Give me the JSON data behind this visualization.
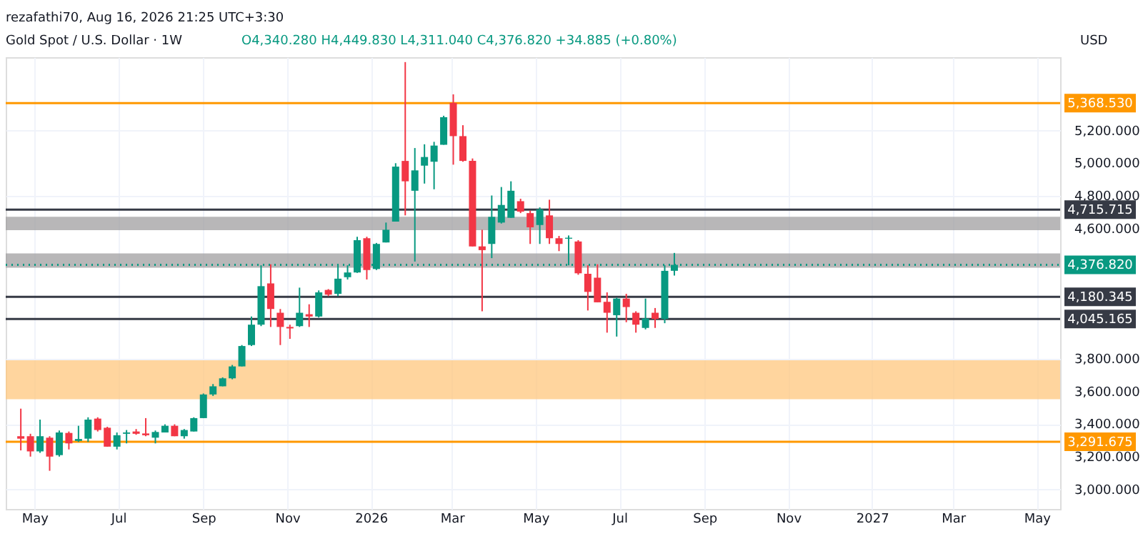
{
  "chart_data": {
    "type": "candlestick",
    "title": "Gold Spot / U.S. Dollar · 1W",
    "subtitle": "O4,340.280 H4,449.830 L4,311.040 C4,376.820 +34.885 (+0.80%)",
    "annotations": [
      "rezafathi70, Aug 16, 2026 21:25 UTC+3:30"
    ],
    "ylabel": "USD",
    "x": [
      "2025-04-21",
      "2025-04-28",
      "2025-05-05",
      "2025-05-12",
      "2025-05-19",
      "2025-05-26",
      "2025-06-02",
      "2025-06-09",
      "2025-06-16",
      "2025-06-23",
      "2025-06-30",
      "2025-07-07",
      "2025-07-14",
      "2025-07-21",
      "2025-07-28",
      "2025-08-04",
      "2025-08-11",
      "2025-08-18",
      "2025-08-25",
      "2025-09-01",
      "2025-09-08",
      "2025-09-15",
      "2025-09-22",
      "2025-09-29",
      "2025-10-06",
      "2025-10-13",
      "2025-10-20",
      "2025-10-27",
      "2025-11-03",
      "2025-11-10",
      "2025-11-17",
      "2025-11-24",
      "2025-12-01",
      "2025-12-08",
      "2025-12-15",
      "2025-12-22",
      "2025-12-29",
      "2026-01-05",
      "2026-01-12",
      "2026-01-19",
      "2026-01-26",
      "2026-02-02",
      "2026-02-09",
      "2026-02-16",
      "2026-02-23",
      "2026-03-02",
      "2026-03-09",
      "2026-03-16",
      "2026-03-23",
      "2026-03-30",
      "2026-04-06",
      "2026-04-13",
      "2026-04-20",
      "2026-04-27",
      "2026-05-04",
      "2026-05-11",
      "2026-05-18",
      "2026-05-25",
      "2026-06-01",
      "2026-06-08",
      "2026-06-15",
      "2026-06-22",
      "2026-06-29",
      "2026-07-06",
      "2026-07-13",
      "2026-07-20",
      "2026-07-27",
      "2026-08-03",
      "2026-08-10"
    ],
    "ohlc": [
      [
        3326,
        3495,
        3239,
        3311
      ],
      [
        3326,
        3341,
        3201,
        3233
      ],
      [
        3233,
        3428,
        3224,
        3326
      ],
      [
        3317,
        3326,
        3114,
        3201
      ],
      [
        3210,
        3361,
        3201,
        3349
      ],
      [
        3346,
        3355,
        3245,
        3282
      ],
      [
        3297,
        3390,
        3291,
        3309
      ],
      [
        3311,
        3442,
        3291,
        3428
      ],
      [
        3434,
        3442,
        3355,
        3364
      ],
      [
        3378,
        3384,
        3262,
        3262
      ],
      [
        3262,
        3349,
        3245,
        3332
      ],
      [
        3341,
        3364,
        3282,
        3349
      ],
      [
        3355,
        3370,
        3335,
        3341
      ],
      [
        3343,
        3437,
        3326,
        3332
      ],
      [
        3317,
        3361,
        3282,
        3352
      ],
      [
        3349,
        3399,
        3349,
        3390
      ],
      [
        3390,
        3399,
        3326,
        3326
      ],
      [
        3326,
        3370,
        3311,
        3364
      ],
      [
        3355,
        3442,
        3355,
        3437
      ],
      [
        3437,
        3588,
        3437,
        3582
      ],
      [
        3582,
        3646,
        3573,
        3632
      ],
      [
        3632,
        3687,
        3632,
        3681
      ],
      [
        3681,
        3763,
        3675,
        3754
      ],
      [
        3754,
        3885,
        3754,
        3879
      ],
      [
        3885,
        4060,
        3879,
        4010
      ],
      [
        4010,
        4374,
        4001,
        4246
      ],
      [
        4263,
        4380,
        3996,
        4106
      ],
      [
        4083,
        4106,
        3885,
        3996
      ],
      [
        3996,
        4010,
        3923,
        3987
      ],
      [
        4001,
        4237,
        3996,
        4083
      ],
      [
        4074,
        4135,
        3996,
        4060
      ],
      [
        4060,
        4220,
        4054,
        4208
      ],
      [
        4223,
        4228,
        4185,
        4194
      ],
      [
        4199,
        4374,
        4185,
        4292
      ],
      [
        4301,
        4374,
        4287,
        4330
      ],
      [
        4330,
        4549,
        4327,
        4528
      ],
      [
        4540,
        4549,
        4287,
        4345
      ],
      [
        4351,
        4511,
        4345,
        4505
      ],
      [
        4514,
        4636,
        4514,
        4592
      ],
      [
        4642,
        5000,
        4642,
        4979
      ],
      [
        5014,
        5620,
        4680,
        4889
      ],
      [
        4831,
        5093,
        4397,
        4956
      ],
      [
        4985,
        5116,
        4875,
        5038
      ],
      [
        5009,
        5131,
        4840,
        5108
      ],
      [
        5113,
        5291,
        5113,
        5282
      ],
      [
        5370,
        5422,
        4991,
        5166
      ],
      [
        5166,
        5233,
        5009,
        5014
      ],
      [
        5014,
        5029,
        4490,
        4490
      ],
      [
        4490,
        4592,
        4092,
        4467
      ],
      [
        4505,
        4802,
        4418,
        4671
      ],
      [
        4636,
        4854,
        4630,
        4744
      ],
      [
        4665,
        4889,
        4665,
        4831
      ],
      [
        4767,
        4782,
        4694,
        4703
      ],
      [
        4694,
        4709,
        4505,
        4607
      ],
      [
        4621,
        4729,
        4505,
        4717
      ],
      [
        4680,
        4776,
        4505,
        4540
      ],
      [
        4540,
        4554,
        4461,
        4505
      ],
      [
        4537,
        4557,
        4374,
        4543
      ],
      [
        4520,
        4528,
        4316,
        4325
      ],
      [
        4322,
        4374,
        4097,
        4211
      ],
      [
        4298,
        4380,
        4147,
        4147
      ],
      [
        4150,
        4208,
        3961,
        4083
      ],
      [
        4068,
        4176,
        3937,
        4170
      ],
      [
        4170,
        4199,
        4025,
        4118
      ],
      [
        4083,
        4092,
        3961,
        4010
      ],
      [
        3990,
        4170,
        3981,
        4048
      ],
      [
        4083,
        4112,
        3990,
        4045
      ],
      [
        4045,
        4374,
        4019,
        4340
      ],
      [
        4340.28,
        4449.83,
        4311.04,
        4376.82
      ]
    ],
    "colors": [
      "#f23645",
      "#f23645",
      "#089981",
      "#f23645",
      "#089981",
      "#f23645",
      "#089981",
      "#089981",
      "#f23645",
      "#f23645",
      "#089981",
      "#089981",
      "#f23645",
      "#f23645",
      "#089981",
      "#089981",
      "#f23645",
      "#089981",
      "#089981",
      "#089981",
      "#089981",
      "#089981",
      "#089981",
      "#089981",
      "#089981",
      "#089981",
      "#f23645",
      "#f23645",
      "#f23645",
      "#089981",
      "#f23645",
      "#089981",
      "#f23645",
      "#089981",
      "#089981",
      "#089981",
      "#f23645",
      "#089981",
      "#089981",
      "#089981",
      "#f23645",
      "#089981",
      "#089981",
      "#089981",
      "#089981",
      "#f23645",
      "#f23645",
      "#f23645",
      "#f23645",
      "#089981",
      "#089981",
      "#089981",
      "#f23645",
      "#f23645",
      "#089981",
      "#f23645",
      "#f23645",
      "#089981",
      "#f23645",
      "#f23645",
      "#f23645",
      "#f23645",
      "#089981",
      "#f23645",
      "#f23645",
      "#089981",
      "#f23645",
      "#089981",
      "#089981"
    ],
    "xlim": [
      "2025-04-10",
      "2027-05-18"
    ],
    "xticks": [
      {
        "value": "2025-05-01",
        "label": "May"
      },
      {
        "value": "2025-07-01",
        "label": "Jul"
      },
      {
        "value": "2025-09-01",
        "label": "Sep"
      },
      {
        "value": "2025-11-01",
        "label": "Nov"
      },
      {
        "value": "2026-01-01",
        "label": "2026"
      },
      {
        "value": "2026-03-01",
        "label": "Mar"
      },
      {
        "value": "2026-05-01",
        "label": "May"
      },
      {
        "value": "2026-07-01",
        "label": "Jul"
      },
      {
        "value": "2026-09-01",
        "label": "Sep"
      },
      {
        "value": "2026-11-01",
        "label": "Nov"
      },
      {
        "value": "2027-01-01",
        "label": "2027"
      },
      {
        "value": "2027-03-01",
        "label": "Mar"
      },
      {
        "value": "2027-05-01",
        "label": "May"
      }
    ],
    "ylim": [
      2880,
      5650
    ],
    "yticks": [
      {
        "value": 3000,
        "label": "3,000.000"
      },
      {
        "value": 3200,
        "label": "3,200.000"
      },
      {
        "value": 3400,
        "label": "3,400.000"
      },
      {
        "value": 3600,
        "label": "3,600.000"
      },
      {
        "value": 3800,
        "label": "3,800.000"
      },
      {
        "value": 4600,
        "label": "4,600.000"
      },
      {
        "value": 4800,
        "label": "4,800.000"
      },
      {
        "value": 5000,
        "label": "5,000.000"
      },
      {
        "value": 5200,
        "label": "5,200.000"
      }
    ],
    "grid": true,
    "ref_lines": [
      {
        "axis": "y",
        "value": 5368.53,
        "label": "5,368.530",
        "color": "#ff9800"
      },
      {
        "axis": "y",
        "value": 4715.715,
        "label": "4,715.715",
        "color": "#363a45"
      },
      {
        "axis": "y",
        "value": 4376.82,
        "label": "4,376.820",
        "color": "#089981",
        "line_style": "dotted"
      },
      {
        "axis": "y",
        "value": 4180.345,
        "label": "4,180.345",
        "color": "#363a45"
      },
      {
        "axis": "y",
        "value": 4045.165,
        "label": "4,045.165",
        "color": "#363a45"
      },
      {
        "axis": "y",
        "value": 3291.675,
        "label": "3,291.675",
        "color": "#ff9800"
      }
    ],
    "bands": [
      {
        "axis": "y",
        "from": 3553,
        "to": 3792,
        "color": "#ffc77d"
      },
      {
        "axis": "y",
        "from": 4589,
        "to": 4671,
        "color": "#a09fa0"
      },
      {
        "axis": "y",
        "from": 4359,
        "to": 4447,
        "color": "#a09fa0"
      }
    ]
  }
}
